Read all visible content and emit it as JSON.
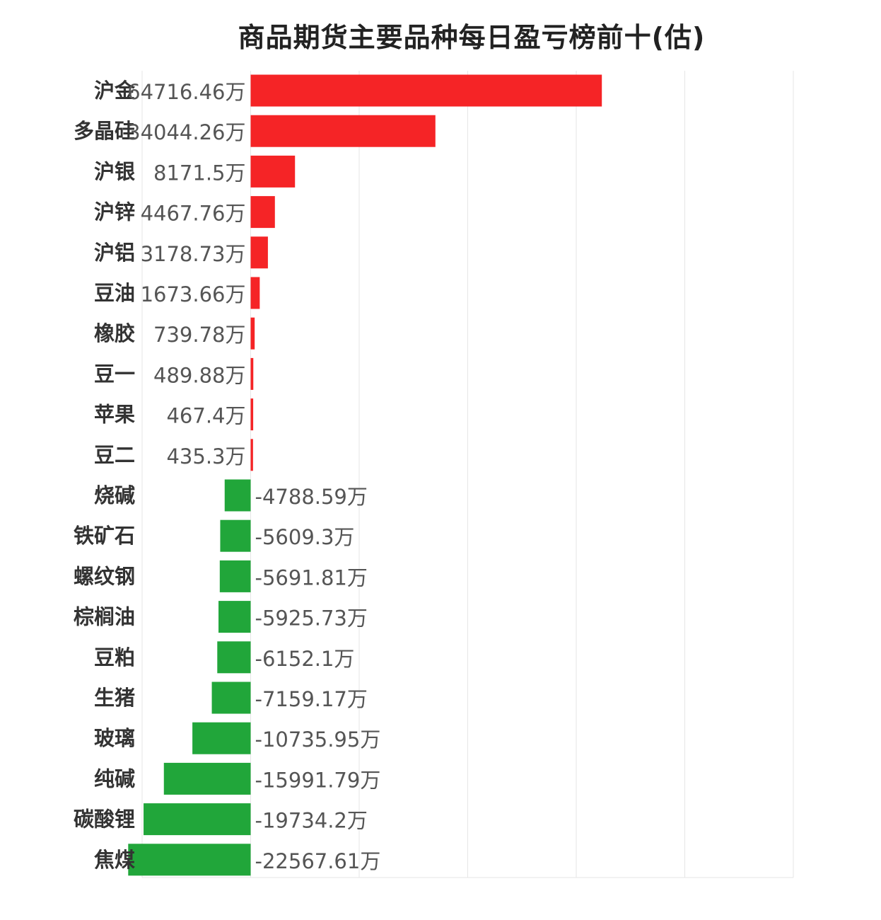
{
  "chart_data": {
    "type": "bar",
    "orientation": "horizontal",
    "title": "商品期货主要品种每日盈亏榜前十(估)",
    "xlabel": "",
    "ylabel": "",
    "unit": "万",
    "grid": true,
    "xlim": [
      -20000,
      100000
    ],
    "colors": {
      "positive": "#f52426",
      "negative": "#21a63a"
    },
    "categories": [
      "沪金",
      "多晶硅",
      "沪银",
      "沪锌",
      "沪铝",
      "豆油",
      "橡胶",
      "豆一",
      "苹果",
      "豆二",
      "烧碱",
      "铁矿石",
      "螺纹钢",
      "棕榈油",
      "豆粕",
      "生猪",
      "玻璃",
      "纯碱",
      "碳酸锂",
      "焦煤"
    ],
    "values": [
      64716.46,
      34044.26,
      8171.5,
      4467.76,
      3178.73,
      1673.66,
      739.78,
      489.88,
      467.4,
      435.3,
      -4788.59,
      -5609.3,
      -5691.81,
      -5925.73,
      -6152.1,
      -7159.17,
      -10735.95,
      -15991.79,
      -19734.2,
      -22567.61
    ],
    "data_labels": [
      "64716.46万",
      "34044.26万",
      "8171.5万",
      "4467.76万",
      "3178.73万",
      "1673.66万",
      "739.78万",
      "489.88万",
      "467.4万",
      "435.3万",
      "-4788.59万",
      "-5609.3万",
      "-5691.81万",
      "-5925.73万",
      "-6152.1万",
      "-7159.17万",
      "-10735.95万",
      "-15991.79万",
      "-19734.2万",
      "-22567.61万"
    ]
  }
}
